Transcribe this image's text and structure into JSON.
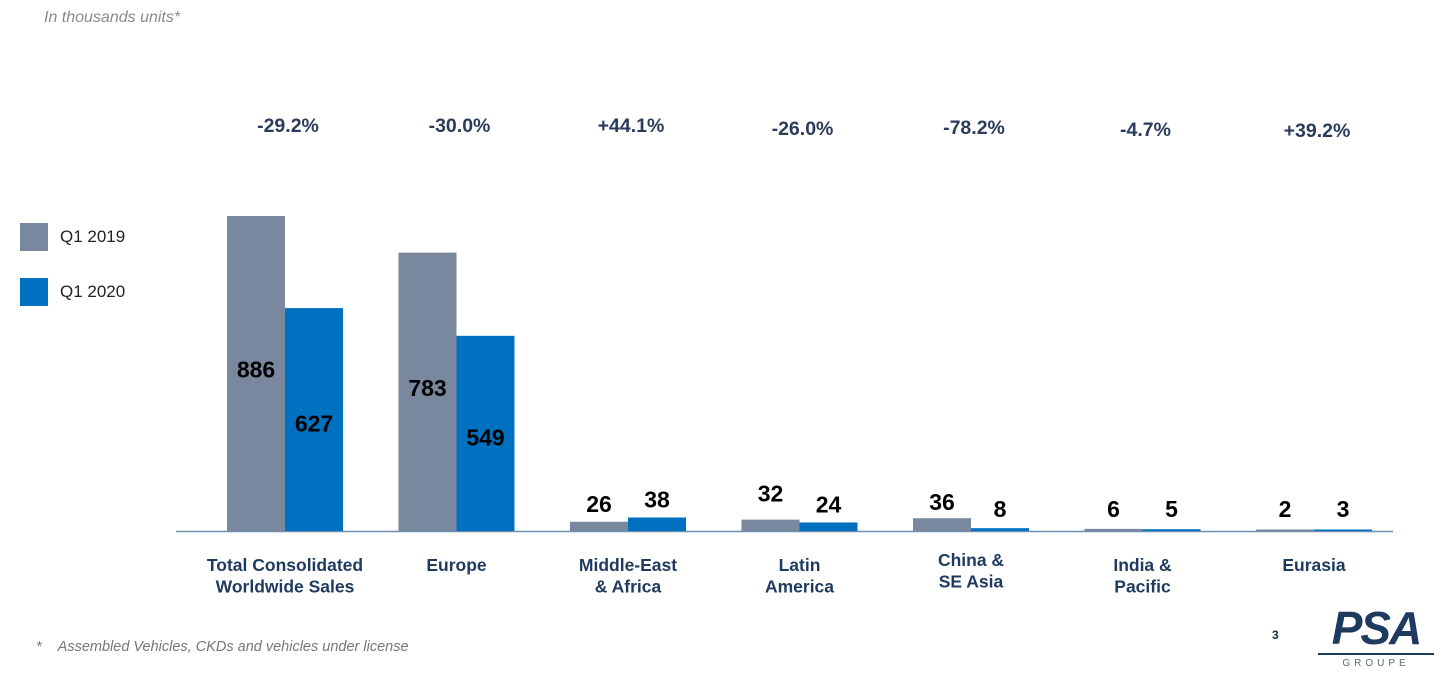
{
  "header": {
    "subtitle": "In thousands units*"
  },
  "legend": {
    "items": [
      {
        "label": "Q1 2019",
        "color": "#7a889f"
      },
      {
        "label": "Q1 2020",
        "color": "#0070c0"
      }
    ]
  },
  "chart_data": {
    "type": "bar",
    "categories": [
      [
        "Total Consolidated",
        "Worldwide Sales"
      ],
      [
        "Europe"
      ],
      [
        "Middle-East",
        "& Africa"
      ],
      [
        "Latin",
        "America"
      ],
      [
        "China &",
        "SE Asia"
      ],
      [
        "India &",
        "Pacific"
      ],
      [
        "Eurasia"
      ]
    ],
    "series": [
      {
        "name": "Q1 2019",
        "values": [
          886,
          783,
          26,
          32,
          36,
          6,
          2
        ],
        "color": "#7a889f"
      },
      {
        "name": "Q1 2020",
        "values": [
          627,
          549,
          38,
          24,
          8,
          5,
          3
        ],
        "color": "#0070c0"
      }
    ],
    "changes": [
      "-29.2%",
      "-30.0%",
      "+44.1%",
      "-26.0%",
      "-78.2%",
      "-4.7%",
      "+39.2%"
    ],
    "ylim": [
      0,
      886
    ],
    "grid": false,
    "legend_position": "left"
  },
  "footer": {
    "footnote_marker": "*",
    "footnote": "Assembled Vehicles, CKDs and vehicles under license",
    "page_number": "3",
    "logo_text": "PSA",
    "logo_subtext": "GROUPE"
  }
}
